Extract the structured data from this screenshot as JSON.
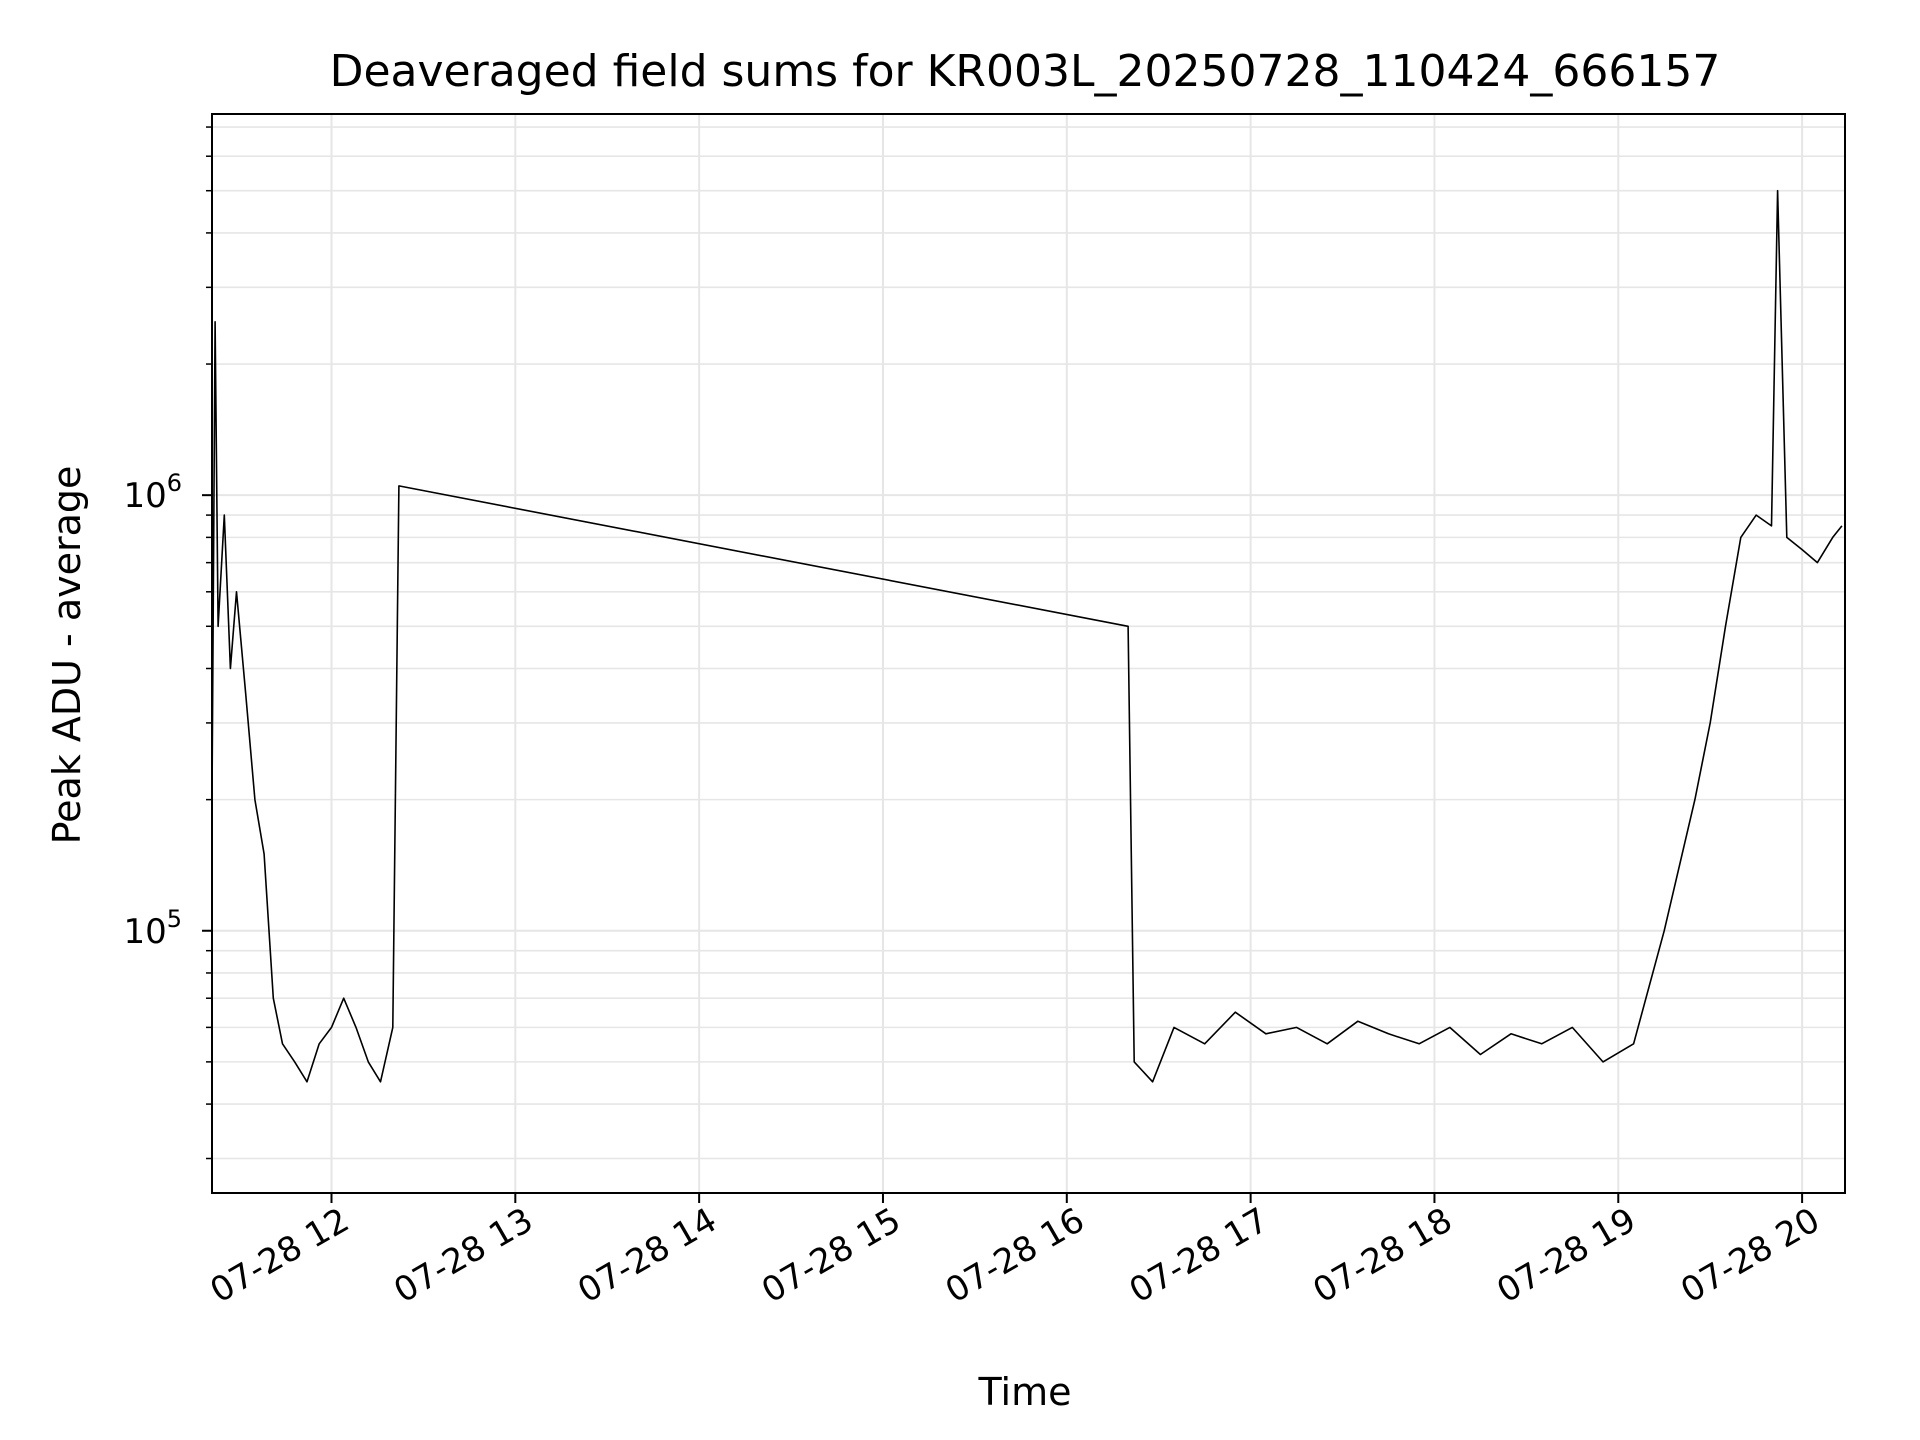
{
  "chart_data": {
    "type": "line",
    "title": "Deaveraged field sums for KR003L_20250728_110424_666157",
    "xlabel": "Time",
    "ylabel": "Peak ADU - average",
    "yscale": "log",
    "grid": true,
    "line_color": "#000000",
    "grid_color": "#e6e6e6",
    "xlim": [
      "2025-07-28 11:21",
      "2025-07-28 20:14"
    ],
    "ylim": [
      25000,
      7500000
    ],
    "x_ticks": [
      {
        "value": "2025-07-28 12:00",
        "label": "07-28 12"
      },
      {
        "value": "2025-07-28 13:00",
        "label": "07-28 13"
      },
      {
        "value": "2025-07-28 14:00",
        "label": "07-28 14"
      },
      {
        "value": "2025-07-28 15:00",
        "label": "07-28 15"
      },
      {
        "value": "2025-07-28 16:00",
        "label": "07-28 16"
      },
      {
        "value": "2025-07-28 17:00",
        "label": "07-28 17"
      },
      {
        "value": "2025-07-28 18:00",
        "label": "07-28 18"
      },
      {
        "value": "2025-07-28 19:00",
        "label": "07-28 19"
      },
      {
        "value": "2025-07-28 20:00",
        "label": "07-28 20"
      }
    ],
    "y_ticks": [
      {
        "value": 100000,
        "base": "10",
        "exp": "5"
      },
      {
        "value": 1000000,
        "base": "10",
        "exp": "6"
      }
    ],
    "series": [
      {
        "x": [
          "2025-07-28 11:21",
          "2025-07-28 11:22",
          "2025-07-28 11:23",
          "2025-07-28 11:25",
          "2025-07-28 11:27",
          "2025-07-28 11:29",
          "2025-07-28 11:32",
          "2025-07-28 11:35",
          "2025-07-28 11:38",
          "2025-07-28 11:41",
          "2025-07-28 11:44",
          "2025-07-28 11:48",
          "2025-07-28 11:52",
          "2025-07-28 11:56",
          "2025-07-28 12:00",
          "2025-07-28 12:04",
          "2025-07-28 12:08",
          "2025-07-28 12:12",
          "2025-07-28 12:16",
          "2025-07-28 12:20",
          "2025-07-28 12:22",
          "2025-07-28 16:20",
          "2025-07-28 16:22",
          "2025-07-28 16:28",
          "2025-07-28 16:35",
          "2025-07-28 16:45",
          "2025-07-28 16:55",
          "2025-07-28 17:05",
          "2025-07-28 17:15",
          "2025-07-28 17:25",
          "2025-07-28 17:35",
          "2025-07-28 17:45",
          "2025-07-28 17:55",
          "2025-07-28 18:05",
          "2025-07-28 18:15",
          "2025-07-28 18:25",
          "2025-07-28 18:35",
          "2025-07-28 18:45",
          "2025-07-28 18:55",
          "2025-07-28 19:05",
          "2025-07-28 19:15",
          "2025-07-28 19:25",
          "2025-07-28 19:30",
          "2025-07-28 19:35",
          "2025-07-28 19:40",
          "2025-07-28 19:45",
          "2025-07-28 19:50",
          "2025-07-28 19:52",
          "2025-07-28 19:55",
          "2025-07-28 20:00",
          "2025-07-28 20:05",
          "2025-07-28 20:10",
          "2025-07-28 20:13"
        ],
        "values": [
          200000,
          2500000,
          500000,
          900000,
          400000,
          600000,
          350000,
          200000,
          150000,
          70000,
          55000,
          50000,
          45000,
          55000,
          60000,
          70000,
          60000,
          50000,
          45000,
          60000,
          1050000,
          500000,
          50000,
          45000,
          60000,
          55000,
          65000,
          58000,
          60000,
          55000,
          62000,
          58000,
          55000,
          60000,
          52000,
          58000,
          55000,
          60000,
          50000,
          55000,
          100000,
          200000,
          300000,
          500000,
          800000,
          900000,
          850000,
          5000000,
          800000,
          750000,
          700000,
          800000,
          850000
        ]
      }
    ]
  }
}
